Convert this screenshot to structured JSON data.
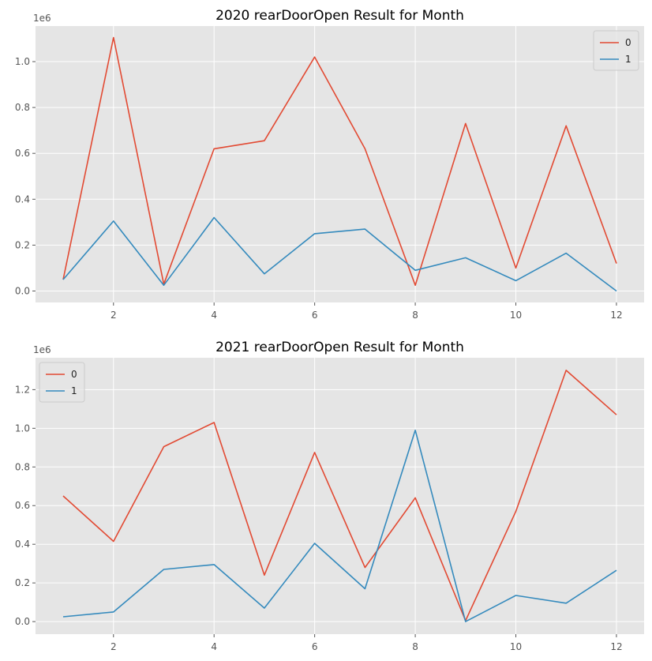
{
  "colors": {
    "axes_bg": "#e5e5e5",
    "grid": "#ffffff",
    "tick_text": "#555555",
    "title_text": "#000000",
    "series_0": "#e24a33",
    "series_1": "#348abd"
  },
  "chart_data": [
    {
      "type": "line",
      "title": "2020 rearDoorOpen Result for Month",
      "xlabel": "",
      "ylabel": "",
      "y_offset_label": "1e6",
      "x": [
        1,
        2,
        3,
        4,
        5,
        6,
        7,
        8,
        9,
        10,
        11,
        12
      ],
      "xticks": [
        2,
        4,
        6,
        8,
        10,
        12
      ],
      "yticks": [
        0.0,
        0.2,
        0.4,
        0.6,
        0.8,
        1.0
      ],
      "ytick_labels": [
        "0.0",
        "0.2",
        "0.4",
        "0.6",
        "0.8",
        "1.0"
      ],
      "xlim": [
        0.45,
        12.55
      ],
      "ylim": [
        -0.05,
        1.155
      ],
      "grid": true,
      "legend_position": "top-right",
      "series": [
        {
          "name": "0",
          "values": [
            0.05,
            1.105,
            0.03,
            0.62,
            0.655,
            1.02,
            0.62,
            0.025,
            0.73,
            0.1,
            0.72,
            0.12
          ]
        },
        {
          "name": "1",
          "values": [
            0.05,
            0.305,
            0.025,
            0.32,
            0.075,
            0.25,
            0.27,
            0.09,
            0.145,
            0.045,
            0.165,
            0.0
          ]
        }
      ]
    },
    {
      "type": "line",
      "title": "2021 rearDoorOpen Result for Month",
      "xlabel": "",
      "ylabel": "",
      "y_offset_label": "1e6",
      "x": [
        1,
        2,
        3,
        4,
        5,
        6,
        7,
        8,
        9,
        10,
        11,
        12
      ],
      "xticks": [
        2,
        4,
        6,
        8,
        10,
        12
      ],
      "yticks": [
        0.0,
        0.2,
        0.4,
        0.6,
        0.8,
        1.0,
        1.2
      ],
      "ytick_labels": [
        "0.0",
        "0.2",
        "0.4",
        "0.6",
        "0.8",
        "1.0",
        "1.2"
      ],
      "xlim": [
        0.45,
        12.55
      ],
      "ylim": [
        -0.065,
        1.365
      ],
      "grid": true,
      "legend_position": "top-left",
      "series": [
        {
          "name": "0",
          "values": [
            0.65,
            0.415,
            0.905,
            1.03,
            0.24,
            0.875,
            0.28,
            0.64,
            0.005,
            0.57,
            1.3,
            1.07
          ]
        },
        {
          "name": "1",
          "values": [
            0.025,
            0.05,
            0.27,
            0.295,
            0.07,
            0.405,
            0.17,
            0.99,
            0.0,
            0.135,
            0.095,
            0.265
          ]
        }
      ]
    }
  ]
}
